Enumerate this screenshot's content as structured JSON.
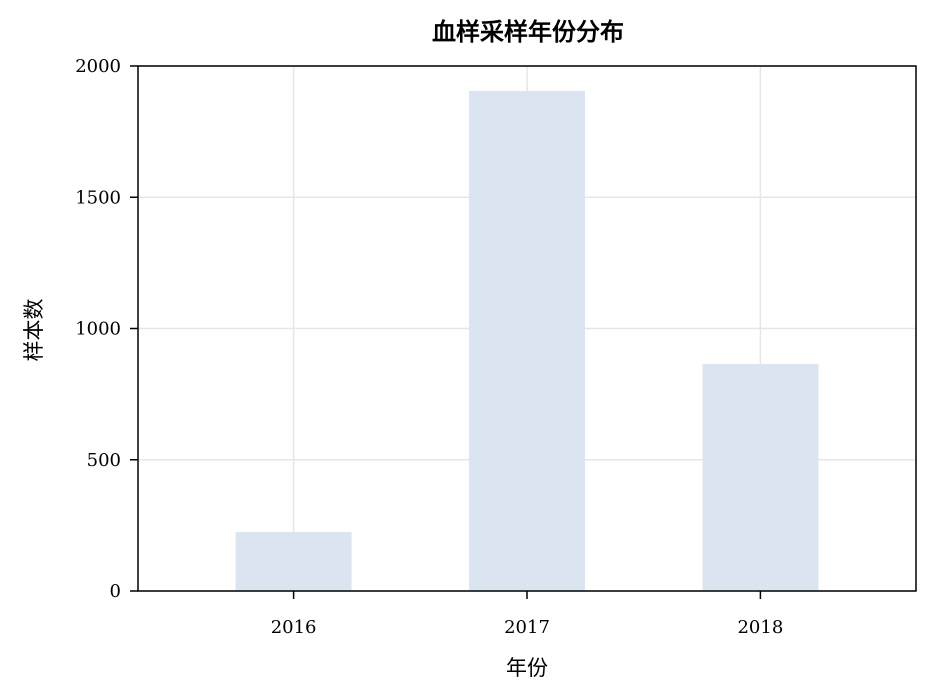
{
  "chart_data": {
    "type": "bar",
    "title": "血样采样年份分布",
    "xlabel": "年份",
    "ylabel": "样本数",
    "categories": [
      "2016",
      "2017",
      "2018"
    ],
    "values": [
      225,
      1905,
      865
    ],
    "ylim": [
      0,
      2000
    ],
    "yticks": [
      0,
      500,
      1000,
      1500,
      2000
    ],
    "grid": true,
    "legend": "none",
    "colors": {
      "bar": "#dbe5f1",
      "grid": "#e6e6e6",
      "axis": "#000000"
    }
  }
}
